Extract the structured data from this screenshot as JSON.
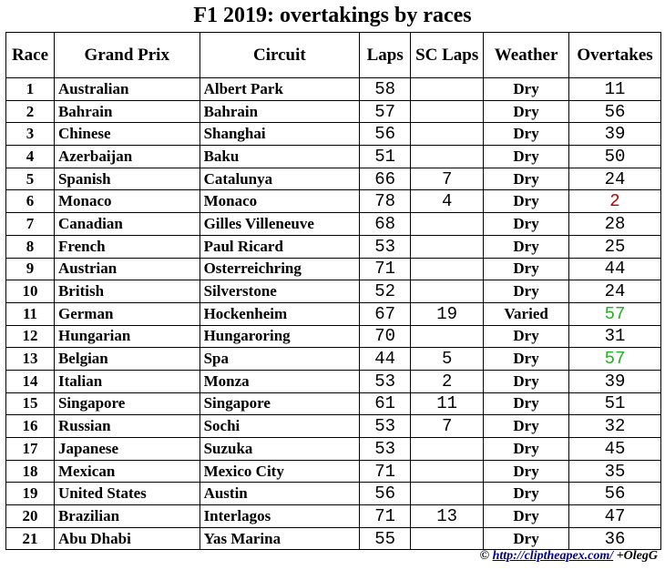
{
  "title": "F1 2019: overtakings by races",
  "table": {
    "header": [
      "Race",
      "Grand Prix",
      "Circuit",
      "Laps",
      "SC Laps",
      "Weather",
      "Overtakes"
    ],
    "rows": [
      [
        1,
        "Australian",
        "Albert Park",
        58,
        null,
        "Dry",
        11
      ],
      [
        2,
        "Bahrain",
        "Bahrain",
        57,
        null,
        "Dry",
        56
      ],
      [
        3,
        "Chinese",
        "Shanghai",
        56,
        null,
        "Dry",
        39
      ],
      [
        4,
        "Azerbaijan",
        "Baku",
        51,
        null,
        "Dry",
        50
      ],
      [
        5,
        "Spanish",
        "Catalunya",
        66,
        7,
        "Dry",
        24
      ],
      [
        6,
        "Monaco",
        "Monaco",
        78,
        4,
        "Dry",
        2
      ],
      [
        7,
        "Canadian",
        "Gilles Villeneuve",
        68,
        null,
        "Dry",
        28
      ],
      [
        8,
        "French",
        "Paul Ricard",
        53,
        null,
        "Dry",
        25
      ],
      [
        9,
        "Austrian",
        "Osterreichring",
        71,
        null,
        "Dry",
        44
      ],
      [
        10,
        "British",
        "Silverstone",
        52,
        null,
        "Dry",
        24
      ],
      [
        11,
        "German",
        "Hockenheim",
        67,
        19,
        "Varied",
        57
      ],
      [
        12,
        "Hungarian",
        "Hungaroring",
        70,
        null,
        "Dry",
        31
      ],
      [
        13,
        "Belgian",
        "Spa",
        44,
        5,
        "Dry",
        57
      ],
      [
        14,
        "Italian",
        "Monza",
        53,
        2,
        "Dry",
        39
      ],
      [
        15,
        "Singapore",
        "Singapore",
        61,
        11,
        "Dry",
        51
      ],
      [
        16,
        "Russian",
        "Sochi",
        53,
        7,
        "Dry",
        32
      ],
      [
        17,
        "Japanese",
        "Suzuka",
        53,
        null,
        "Dry",
        45
      ],
      [
        18,
        "Mexican",
        "Mexico City",
        71,
        null,
        "Dry",
        35
      ],
      [
        19,
        "United States",
        "Austin",
        56,
        null,
        "Dry",
        56
      ],
      [
        20,
        "Brazilian",
        "Interlagos",
        71,
        13,
        "Dry",
        47
      ],
      [
        21,
        "Abu Dhabi",
        "Yas Marina",
        55,
        null,
        "Dry",
        36
      ]
    ]
  },
  "footer": {
    "copyright": "©",
    "link": "http://cliptheapex.com/",
    "author": "+OlegG"
  }
}
